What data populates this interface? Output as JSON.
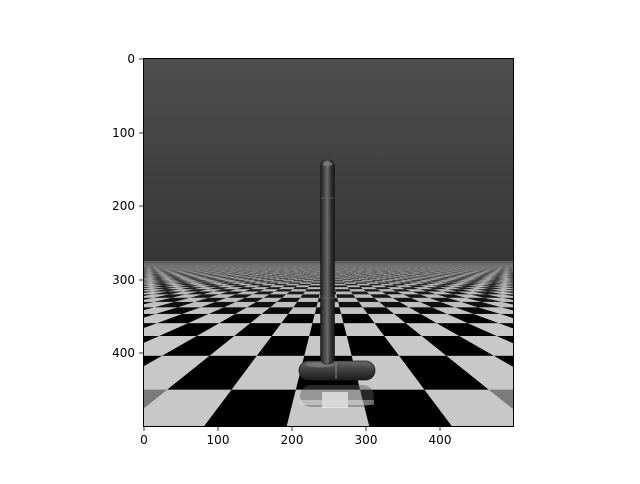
{
  "figure": {
    "x_ticks": [
      "0",
      "100",
      "200",
      "300",
      "400"
    ],
    "y_ticks": [
      "0",
      "100",
      "200",
      "300",
      "400"
    ],
    "x_range": [
      0,
      500
    ],
    "y_range": [
      0,
      500
    ],
    "y_inverted": true,
    "image_size": [
      500,
      500
    ]
  },
  "scene": {
    "sky_top_color": "#4e4e4e",
    "sky_bottom_color": "#363636",
    "floor_light_color": "#c8c8c8",
    "floor_dark_color": "#000000",
    "body_color": "#4a4a4a",
    "highlight_color": "#eeeeee"
  }
}
